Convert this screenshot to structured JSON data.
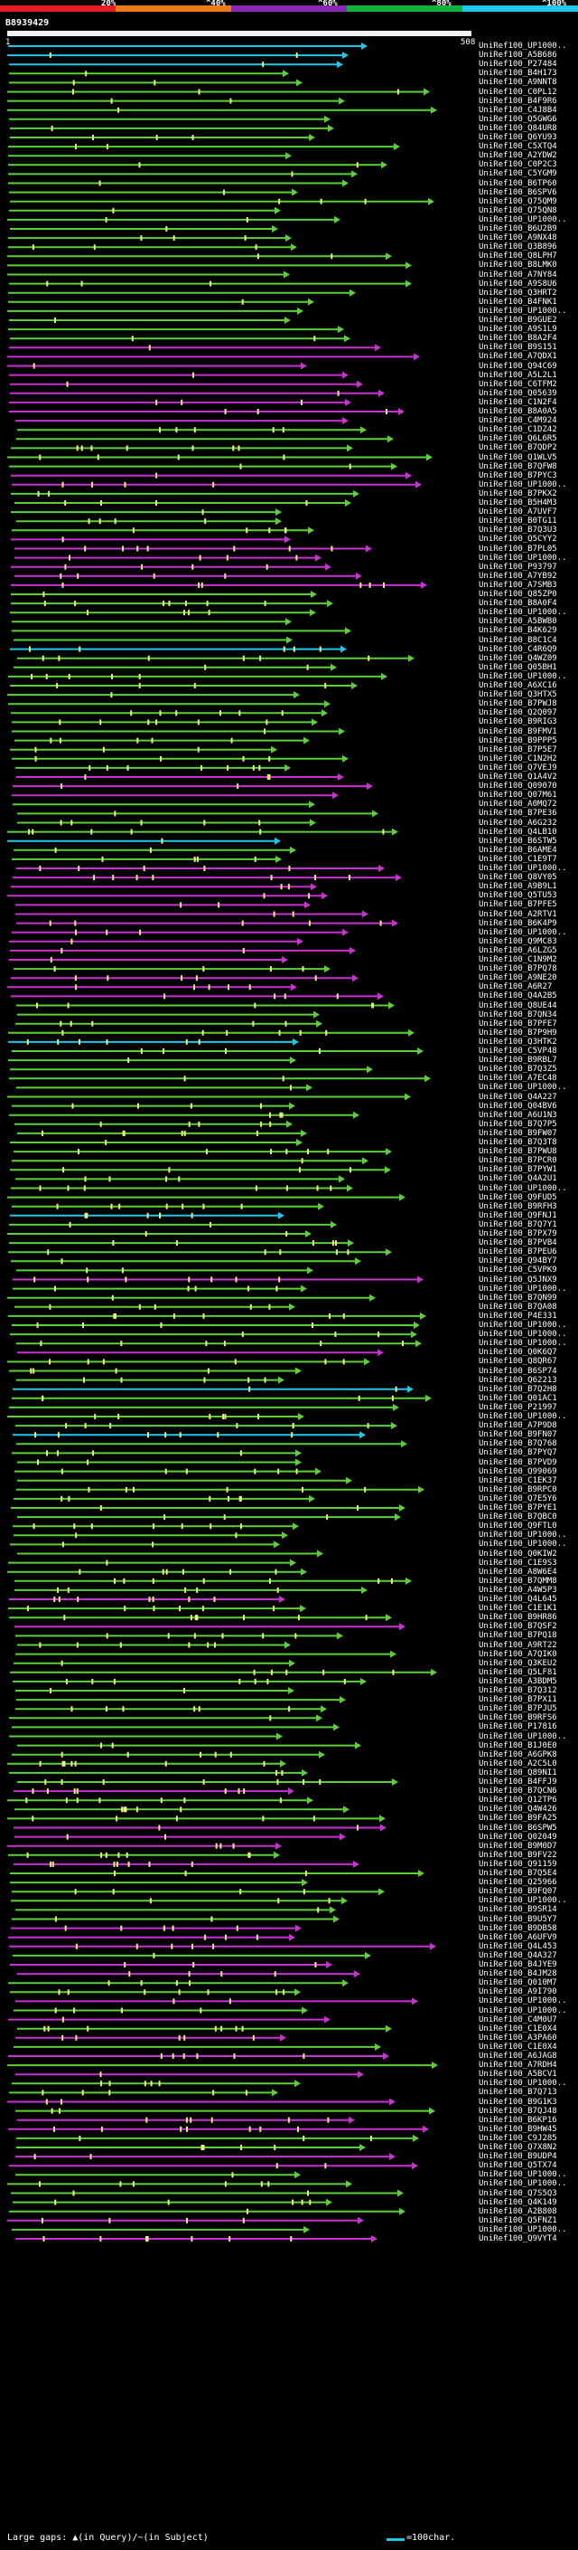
{
  "scale": {
    "labels": [
      "20%",
      "^40%",
      "^60%",
      "^80%",
      "^100%"
    ],
    "colors": [
      "#e81c24",
      "#f07a16",
      "#8b27b5",
      "#10b23a",
      "#1fc8ea"
    ]
  },
  "query": {
    "id": "B8939429",
    "start": "1",
    "end": "508"
  },
  "colors": {
    "cyan": "#1fc8ea",
    "green": "#5cd136",
    "magenta": "#cc2fd3"
  },
  "hits": [
    {
      "label": "UniRef100_UP1000..",
      "c": "cyan"
    },
    {
      "label": "UniRef100_A5B686",
      "c": "cyan"
    },
    {
      "label": "UniRef100_P27484",
      "c": "cyan"
    },
    {
      "label": "UniRef100_B4H173",
      "c": "green"
    },
    {
      "label": "UniRef100_A9NNT8",
      "c": "green"
    },
    {
      "label": "UniRef100_C0PL12",
      "c": "green"
    },
    {
      "label": "UniRef100_B4F9R6",
      "c": "green"
    },
    {
      "label": "UniRef100_C4J8B4",
      "c": "green"
    },
    {
      "label": "UniRef100_Q5GWG6",
      "c": "green"
    },
    {
      "label": "UniRef100_Q84UR8",
      "c": "green"
    },
    {
      "label": "UniRef100_Q6YU93",
      "c": "green"
    },
    {
      "label": "UniRef100_C5XTQ4",
      "c": "green"
    },
    {
      "label": "UniRef100_A2YDW2",
      "c": "green"
    },
    {
      "label": "UniRef100_C0P2C3",
      "c": "green"
    },
    {
      "label": "UniRef100_C5YGM9",
      "c": "green"
    },
    {
      "label": "UniRef100_B6TP60",
      "c": "green"
    },
    {
      "label": "UniRef100_B6SPV6",
      "c": "green"
    },
    {
      "label": "UniRef100_Q75QM9",
      "c": "green"
    },
    {
      "label": "UniRef100_Q75QN8",
      "c": "green"
    },
    {
      "label": "UniRef100_UP1000..",
      "c": "green"
    },
    {
      "label": "UniRef100_B6U2B9",
      "c": "green"
    },
    {
      "label": "UniRef100_A9NX48",
      "c": "green"
    },
    {
      "label": "UniRef100_Q3B896",
      "c": "green"
    },
    {
      "label": "UniRef100_Q8LPH7",
      "c": "green"
    },
    {
      "label": "UniRef100_B8LMK0",
      "c": "green"
    },
    {
      "label": "UniRef100_A7NY84",
      "c": "green"
    },
    {
      "label": "UniRef100_A9S8U6",
      "c": "green"
    },
    {
      "label": "UniRef100_Q3HRT2",
      "c": "green"
    },
    {
      "label": "UniRef100_B4FNK1",
      "c": "green"
    },
    {
      "label": "UniRef100_UP1000..",
      "c": "green"
    },
    {
      "label": "UniRef100_B9GUE2",
      "c": "green"
    },
    {
      "label": "UniRef100_A9S1L9",
      "c": "green"
    },
    {
      "label": "UniRef100_B8A2F4",
      "c": "green"
    },
    {
      "label": "UniRef100_B9S151",
      "c": "magenta"
    },
    {
      "label": "UniRef100_A7QDX1",
      "c": "magenta"
    },
    {
      "label": "UniRef100_Q94C69",
      "c": "magenta"
    },
    {
      "label": "UniRef100_A5L2L1",
      "c": "magenta"
    },
    {
      "label": "UniRef100_C6TFM2",
      "c": "magenta"
    },
    {
      "label": "UniRef100_Q05639",
      "c": "magenta"
    },
    {
      "label": "UniRef100_C1N2F4",
      "c": "magenta"
    },
    {
      "label": "UniRef100_B8A0A5",
      "c": "magenta"
    },
    {
      "label": "UniRef100_C4M924",
      "c": "magenta"
    },
    {
      "label": "UniRef100_C1DZ42",
      "c": "green"
    },
    {
      "label": "UniRef100_Q6L6R5",
      "c": "green"
    },
    {
      "label": "UniRef100_B7QDP2",
      "c": "green"
    },
    {
      "label": "UniRef100_Q1WLV5",
      "c": "green"
    },
    {
      "label": "UniRef100_B7QFW8",
      "c": "green"
    },
    {
      "label": "UniRef100_B7PYC3",
      "c": "magenta"
    },
    {
      "label": "UniRef100_UP1000..",
      "c": "magenta"
    },
    {
      "label": "UniRef100_B7PKX2",
      "c": "green"
    },
    {
      "label": "UniRef100_B5H4M3",
      "c": "green"
    },
    {
      "label": "UniRef100_A7UVF7",
      "c": "green"
    },
    {
      "label": "UniRef100_B0TG11",
      "c": "green"
    },
    {
      "label": "UniRef100_B7Q3U3",
      "c": "green"
    },
    {
      "label": "UniRef100_Q5CYY2",
      "c": "magenta"
    },
    {
      "label": "UniRef100_B7PL05",
      "c": "magenta"
    },
    {
      "label": "UniRef100_UP1000..",
      "c": "magenta"
    },
    {
      "label": "UniRef100_P93797",
      "c": "magenta"
    },
    {
      "label": "UniRef100_A7YB92",
      "c": "magenta"
    },
    {
      "label": "UniRef100_A7SMB3",
      "c": "magenta"
    },
    {
      "label": "UniRef100_Q85ZP0",
      "c": "green"
    },
    {
      "label": "UniRef100_B8A0F4",
      "c": "green"
    },
    {
      "label": "UniRef100_UP1000..",
      "c": "green"
    },
    {
      "label": "UniRef100_A5BWB0",
      "c": "green"
    },
    {
      "label": "UniRef100_B4K629",
      "c": "green"
    },
    {
      "label": "UniRef100_B8C1C4",
      "c": "green"
    },
    {
      "label": "UniRef100_C4R6Q9",
      "c": "cyan"
    },
    {
      "label": "UniRef100_Q4WZ09",
      "c": "green"
    },
    {
      "label": "UniRef100_Q05BH1",
      "c": "green"
    },
    {
      "label": "UniRef100_UP1000..",
      "c": "green"
    },
    {
      "label": "UniRef100_A6XC16",
      "c": "green"
    },
    {
      "label": "UniRef100_Q3HTX5",
      "c": "green"
    },
    {
      "label": "UniRef100_B7PWJ8",
      "c": "green"
    },
    {
      "label": "UniRef100_Q2Q097",
      "c": "green"
    },
    {
      "label": "UniRef100_B9RIG3",
      "c": "green"
    },
    {
      "label": "UniRef100_B9FMV1",
      "c": "green"
    },
    {
      "label": "UniRef100_B9PPP5",
      "c": "green"
    },
    {
      "label": "UniRef100_B7P5E7",
      "c": "green"
    },
    {
      "label": "UniRef100_C1N2H2",
      "c": "green"
    },
    {
      "label": "UniRef100_Q7VEJ9",
      "c": "green"
    },
    {
      "label": "UniRef100_Q1A4V2",
      "c": "magenta"
    },
    {
      "label": "UniRef100_Q09070",
      "c": "magenta"
    },
    {
      "label": "UniRef100_Q07M61",
      "c": "magenta"
    },
    {
      "label": "UniRef100_A0MQ72",
      "c": "green"
    },
    {
      "label": "UniRef100_B7PE36",
      "c": "green"
    },
    {
      "label": "UniRef100_A6G232",
      "c": "green"
    },
    {
      "label": "UniRef100_Q4LB10",
      "c": "green"
    },
    {
      "label": "UniRef100_B6STW5",
      "c": "cyan"
    },
    {
      "label": "UniRef100_B6AME4",
      "c": "green"
    },
    {
      "label": "UniRef100_C1E9T7",
      "c": "green"
    },
    {
      "label": "UniRef100_UP1000..",
      "c": "magenta"
    },
    {
      "label": "UniRef100_Q8VY05",
      "c": "magenta"
    },
    {
      "label": "UniRef100_A9B9L1",
      "c": "magenta"
    },
    {
      "label": "UniRef100_Q5TU53",
      "c": "magenta"
    },
    {
      "label": "UniRef100_B7PFE5",
      "c": "magenta"
    },
    {
      "label": "UniRef100_A2RTV1",
      "c": "magenta"
    },
    {
      "label": "UniRef100_B6K4P9",
      "c": "magenta"
    },
    {
      "label": "UniRef100_UP1000..",
      "c": "magenta"
    },
    {
      "label": "UniRef100_Q9MC83",
      "c": "magenta"
    },
    {
      "label": "UniRef100_A6LZG5",
      "c": "magenta"
    },
    {
      "label": "UniRef100_C1N9M2",
      "c": "magenta"
    },
    {
      "label": "UniRef100_B7PQ78",
      "c": "green"
    },
    {
      "label": "UniRef100_A9NE20",
      "c": "magenta"
    },
    {
      "label": "UniRef100_A6R27",
      "c": "magenta"
    },
    {
      "label": "UniRef100_Q4A2B5",
      "c": "magenta"
    },
    {
      "label": "UniRef100_Q8UE44",
      "c": "green"
    },
    {
      "label": "UniRef100_B7QN34",
      "c": "green"
    },
    {
      "label": "UniRef100_B7PFE7",
      "c": "green"
    },
    {
      "label": "UniRef100_B7P9H9",
      "c": "green"
    },
    {
      "label": "UniRef100_Q3HTK2",
      "c": "cyan"
    },
    {
      "label": "UniRef100_C5VP48",
      "c": "green"
    },
    {
      "label": "UniRef100_B9RBL7",
      "c": "green"
    },
    {
      "label": "UniRef100_B7Q3Z5",
      "c": "green"
    },
    {
      "label": "UniRef100_A7EC48",
      "c": "green"
    },
    {
      "label": "UniRef100_UP1000..",
      "c": "green"
    },
    {
      "label": "UniRef100_Q4A227",
      "c": "green"
    },
    {
      "label": "UniRef100_Q04BV6",
      "c": "green"
    },
    {
      "label": "UniRef100_A6U1N3",
      "c": "green"
    },
    {
      "label": "UniRef100_B7Q7P5",
      "c": "green"
    },
    {
      "label": "UniRef100_B9FW07",
      "c": "green"
    },
    {
      "label": "UniRef100_B7Q3T8",
      "c": "green"
    },
    {
      "label": "UniRef100_B7PWU8",
      "c": "green"
    },
    {
      "label": "UniRef100_B7PCR0",
      "c": "green"
    },
    {
      "label": "UniRef100_B7PYW1",
      "c": "green"
    },
    {
      "label": "UniRef100_Q4A2U1",
      "c": "green"
    },
    {
      "label": "UniRef100_UP1000..",
      "c": "green"
    },
    {
      "label": "UniRef100_Q9FUD5",
      "c": "green"
    },
    {
      "label": "UniRef100_B9RFH3",
      "c": "green"
    },
    {
      "label": "UniRef100_Q9FNJ1",
      "c": "cyan"
    },
    {
      "label": "UniRef100_B7Q7Y1",
      "c": "green"
    },
    {
      "label": "UniRef100_B7PX79",
      "c": "green"
    },
    {
      "label": "UniRef100_B7PVB4",
      "c": "green"
    },
    {
      "label": "UniRef100_B7PEU6",
      "c": "green"
    },
    {
      "label": "UniRef100_Q94BY7",
      "c": "green"
    },
    {
      "label": "UniRef100_C5VPK9",
      "c": "green"
    },
    {
      "label": "UniRef100_Q5JNX9",
      "c": "magenta"
    },
    {
      "label": "UniRef100_UP1000..",
      "c": "green"
    },
    {
      "label": "UniRef100_B7QN99",
      "c": "green"
    },
    {
      "label": "UniRef100_B7QA08",
      "c": "green"
    },
    {
      "label": "UniRef100_P4E331",
      "c": "green"
    },
    {
      "label": "UniRef100_UP1000..",
      "c": "green"
    },
    {
      "label": "UniRef100_UP1000..",
      "c": "green"
    },
    {
      "label": "UniRef100_UP1000..",
      "c": "green"
    },
    {
      "label": "UniRef100_Q0K6Q7",
      "c": "magenta"
    },
    {
      "label": "UniRef100_Q8QR67",
      "c": "green"
    },
    {
      "label": "UniRef100_B6SP74",
      "c": "green"
    },
    {
      "label": "UniRef100_Q62213",
      "c": "green"
    },
    {
      "label": "UniRef100_B7Q2H8",
      "c": "cyan"
    },
    {
      "label": "UniRef100_Q01AC1",
      "c": "green"
    },
    {
      "label": "UniRef100_P21997",
      "c": "green"
    },
    {
      "label": "UniRef100_UP1000..",
      "c": "green"
    },
    {
      "label": "UniRef100_A7P9D8",
      "c": "green"
    },
    {
      "label": "UniRef100_B9FN07",
      "c": "cyan"
    },
    {
      "label": "UniRef100_B7Q768",
      "c": "green"
    },
    {
      "label": "UniRef100_B7PYQ7",
      "c": "green"
    },
    {
      "label": "UniRef100_B7PVD9",
      "c": "green"
    },
    {
      "label": "UniRef100_Q99069",
      "c": "green"
    },
    {
      "label": "UniRef100_C1EK37",
      "c": "green"
    },
    {
      "label": "UniRef100_B9RPC0",
      "c": "green"
    },
    {
      "label": "UniRef100_Q7E5Y6",
      "c": "green"
    },
    {
      "label": "UniRef100_B7PYE1",
      "c": "green"
    },
    {
      "label": "UniRef100_B7QBC0",
      "c": "green"
    },
    {
      "label": "UniRef100_Q9FTL0",
      "c": "green"
    },
    {
      "label": "UniRef100_UP1000..",
      "c": "green"
    },
    {
      "label": "UniRef100_UP1000..",
      "c": "green"
    },
    {
      "label": "UniRef100_Q0KIW2",
      "c": "green"
    },
    {
      "label": "UniRef100_C1E9S3",
      "c": "green"
    },
    {
      "label": "UniRef100_A8W6E4",
      "c": "green"
    },
    {
      "label": "UniRef100_B7QMM8",
      "c": "green"
    },
    {
      "label": "UniRef100_A4W5P3",
      "c": "green"
    },
    {
      "label": "UniRef100_Q4L645",
      "c": "magenta"
    },
    {
      "label": "UniRef100_C1E1K1",
      "c": "green"
    },
    {
      "label": "UniRef100_B9HR86",
      "c": "green"
    },
    {
      "label": "UniRef100_B7QSF2",
      "c": "magenta"
    },
    {
      "label": "UniRef100_B7PQ18",
      "c": "green"
    },
    {
      "label": "UniRef100_A9RT22",
      "c": "green"
    },
    {
      "label": "UniRef100_A7QIK0",
      "c": "green"
    },
    {
      "label": "UniRef100_Q3KEU2",
      "c": "green"
    },
    {
      "label": "UniRef100_Q5LF81",
      "c": "green"
    },
    {
      "label": "UniRef100_A3BDM5",
      "c": "green"
    },
    {
      "label": "UniRef100_B7Q312",
      "c": "green"
    },
    {
      "label": "UniRef100_B7PX11",
      "c": "green"
    },
    {
      "label": "UniRef100_B7PJU5",
      "c": "green"
    },
    {
      "label": "UniRef100_B9RFS6",
      "c": "green"
    },
    {
      "label": "UniRef100_P17816",
      "c": "green"
    },
    {
      "label": "UniRef100_UP1000..",
      "c": "green"
    },
    {
      "label": "UniRef100_B1J0E0",
      "c": "green"
    },
    {
      "label": "UniRef100_A6GPK8",
      "c": "green"
    },
    {
      "label": "UniRef100_A2C5L0",
      "c": "green"
    },
    {
      "label": "UniRef100_Q89NI1",
      "c": "green"
    },
    {
      "label": "UniRef100_B4FFJ9",
      "c": "green"
    },
    {
      "label": "UniRef100_B7QCN6",
      "c": "magenta"
    },
    {
      "label": "UniRef100_Q12TP6",
      "c": "green"
    },
    {
      "label": "UniRef100_Q4W426",
      "c": "green"
    },
    {
      "label": "UniRef100_B9FA25",
      "c": "green"
    },
    {
      "label": "UniRef100_B6SPW5",
      "c": "magenta"
    },
    {
      "label": "UniRef100_Q02049",
      "c": "magenta"
    },
    {
      "label": "UniRef100_B9M0D7",
      "c": "magenta"
    },
    {
      "label": "UniRef100_B9FV22",
      "c": "green"
    },
    {
      "label": "UniRef100_Q91159",
      "c": "magenta"
    },
    {
      "label": "UniRef100_B7Q5E4",
      "c": "green"
    },
    {
      "label": "UniRef100_Q25966",
      "c": "green"
    },
    {
      "label": "UniRef100_B9FQ07",
      "c": "green"
    },
    {
      "label": "UniRef100_UP1000..",
      "c": "green"
    },
    {
      "label": "UniRef100_B9SR14",
      "c": "green"
    },
    {
      "label": "UniRef100_B9U5Y7",
      "c": "green"
    },
    {
      "label": "UniRef100_B9DB58",
      "c": "magenta"
    },
    {
      "label": "UniRef100_A6UFV9",
      "c": "magenta"
    },
    {
      "label": "UniRef100_Q4L453",
      "c": "magenta"
    },
    {
      "label": "UniRef100_Q4A327",
      "c": "green"
    },
    {
      "label": "UniRef100_B4JYE9",
      "c": "magenta"
    },
    {
      "label": "UniRef100_B4JM28",
      "c": "magenta"
    },
    {
      "label": "UniRef100_Q010M7",
      "c": "green"
    },
    {
      "label": "UniRef100_A9I790",
      "c": "green"
    },
    {
      "label": "UniRef100_UP1000..",
      "c": "magenta"
    },
    {
      "label": "UniRef100_UP1000..",
      "c": "green"
    },
    {
      "label": "UniRef100_C4M0U7",
      "c": "magenta"
    },
    {
      "label": "UniRef100_C1E0X4",
      "c": "green"
    },
    {
      "label": "UniRef100_A3PA60",
      "c": "magenta"
    },
    {
      "label": "UniRef100_C1E0X4",
      "c": "green"
    },
    {
      "label": "UniRef100_A6JAG8",
      "c": "magenta"
    },
    {
      "label": "UniRef100_A7RDH4",
      "c": "green"
    },
    {
      "label": "UniRef100_A5BCV1",
      "c": "magenta"
    },
    {
      "label": "UniRef100_UP1000..",
      "c": "green"
    },
    {
      "label": "UniRef100_B7Q713",
      "c": "green"
    },
    {
      "label": "UniRef100_B9G1K3",
      "c": "magenta"
    },
    {
      "label": "UniRef100_B7QJ48",
      "c": "green"
    },
    {
      "label": "UniRef100_B6KP16",
      "c": "magenta"
    },
    {
      "label": "UniRef100_B9HW45",
      "c": "magenta"
    },
    {
      "label": "UniRef100_C9J285",
      "c": "green"
    },
    {
      "label": "UniRef100_Q7X8N2",
      "c": "green"
    },
    {
      "label": "UniRef100_B9UDP4",
      "c": "magenta"
    },
    {
      "label": "UniRef100_Q5TX74",
      "c": "magenta"
    },
    {
      "label": "UniRef100_UP1000..",
      "c": "green"
    },
    {
      "label": "UniRef100_UP1000..",
      "c": "green"
    },
    {
      "label": "UniRef100_Q7S5Q3",
      "c": "green"
    },
    {
      "label": "UniRef100_Q4K149",
      "c": "green"
    },
    {
      "label": "UniRef100_A2B808",
      "c": "green"
    },
    {
      "label": "UniRef100_Q5FNZ1",
      "c": "magenta"
    },
    {
      "label": "UniRef100_UP1000..",
      "c": "green"
    },
    {
      "label": "UniRef100_Q9VYT4",
      "c": "magenta"
    }
  ],
  "legend": {
    "text": "Large gaps: ▲(in Query)/~(in Subject)",
    "length": "=100char."
  }
}
